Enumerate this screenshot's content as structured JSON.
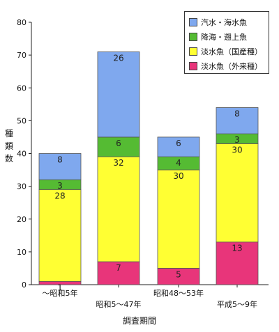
{
  "chart_data": {
    "type": "bar",
    "stacked": true,
    "categories": [
      "〜昭和5年",
      "昭和5〜47年",
      "昭和48〜53年",
      "平成5〜9年"
    ],
    "series": [
      {
        "name": "淡水魚（外来種）",
        "color": "#e8357a",
        "values": [
          1,
          7,
          5,
          13
        ]
      },
      {
        "name": "淡水魚（国産種）",
        "color": "#ffff33",
        "values": [
          28,
          32,
          30,
          30
        ]
      },
      {
        "name": "降海・遡上魚",
        "color": "#55bb33",
        "values": [
          3,
          6,
          4,
          3
        ]
      },
      {
        "name": "汽水・海水魚",
        "color": "#7fa8ee",
        "values": [
          8,
          26,
          6,
          8
        ]
      }
    ],
    "legend_order": [
      "汽水・海水魚",
      "降海・遡上魚",
      "淡水魚（国産種）",
      "淡水魚（外来種）"
    ],
    "ylim": [
      0,
      80
    ],
    "yticks": [
      0,
      10,
      20,
      30,
      40,
      50,
      60,
      70,
      80
    ],
    "ylabel": "種類数",
    "xlabel": "調査期間",
    "legend_position": "top-right",
    "grid": false
  }
}
